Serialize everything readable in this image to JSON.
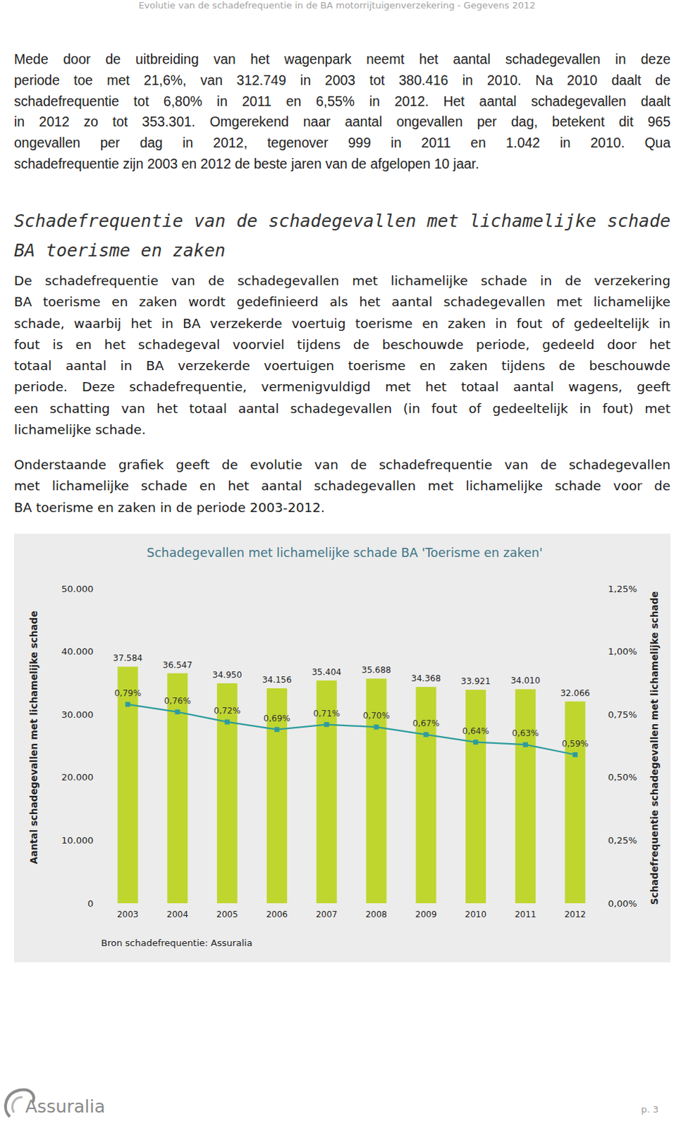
{
  "header": {
    "text": "Evolutie van de schadefrequentie in de BA motorrijtuigenverzekering - Gegevens 2012"
  },
  "paragraph_1": {
    "lines": [
      "Mede door de uitbreiding van het wagenpark neemt het aantal schadegevallen in deze",
      "periode toe met 21,6%, van 312.749 in 2003 tot 380.416 in 2010. Na 2010 daalt de",
      "schadefrequentie tot 6,80% in 2011 en 6,55% in 2012. Het aantal schadegevallen daalt",
      "in 2012 zo tot 353.301. Omgerekend naar aantal ongevallen per dag, betekent dit 965",
      "ongevallen per dag in 2012, tegenover 999 in 2011 en 1.042 in 2010. Qua",
      "schadefrequentie zijn 2003 en 2012 de beste jaren van de afgelopen 10 jaar."
    ]
  },
  "heading": {
    "lines": [
      "Schadefrequentie van de schadegevallen met lichamelijke schade",
      "BA toerisme en zaken"
    ]
  },
  "paragraph_2": {
    "lines": [
      "De schadefrequentie van de schadegevallen met lichamelijke schade in de verzekering",
      "BA toerisme en zaken wordt gedefinieerd als het aantal schadegevallen met lichamelijke",
      "schade, waarbij het in BA verzekerde voertuig toerisme en zaken in fout of gedeeltelijk in",
      "fout is en het schadegeval voorviel tijdens de beschouwde periode, gedeeld door het",
      "totaal aantal in BA verzekerde voertuigen toerisme en zaken tijdens de beschouwde",
      "periode. Deze schadefrequentie, vermenigvuldigd met het totaal aantal wagens, geeft",
      "een schatting van het totaal aantal schadegevallen (in fout of gedeeltelijk in fout) met",
      "lichamelijke schade."
    ]
  },
  "paragraph_3": {
    "lines": [
      "Onderstaande grafiek geeft de evolutie van de schadefrequentie van de schadegevallen",
      "met lichamelijke schade en het aantal schadegevallen met lichamelijke schade voor de",
      "BA toerisme en zaken in de periode 2003-2012."
    ]
  },
  "chart_data": {
    "type": "bar",
    "title": "Schadegevallen met lichamelijke schade BA 'Toerisme en zaken'",
    "ylabel": "Aantal schadegevallen met lichamelijke schade",
    "y2label": "Schadefrequentie schadegevallen met lichamelijke schade",
    "source": "Bron schadefrequentie: Assuralia",
    "categories": [
      "2003",
      "2004",
      "2005",
      "2006",
      "2007",
      "2008",
      "2009",
      "2010",
      "2011",
      "2012"
    ],
    "series": [
      {
        "type": "bar",
        "color": "#bfd62f",
        "values": [
          37584,
          36547,
          34950,
          34156,
          35404,
          35688,
          34368,
          33921,
          34010,
          32066
        ],
        "value_labels": [
          "37.584",
          "36.547",
          "34.950",
          "34.156",
          "35.404",
          "35.688",
          "34.368",
          "33.921",
          "34.010",
          "32.066"
        ]
      },
      {
        "type": "line",
        "axis": "y2",
        "color": "#2e9c9e",
        "marker": "square",
        "values": [
          0.79,
          0.76,
          0.72,
          0.69,
          0.71,
          0.7,
          0.67,
          0.64,
          0.63,
          0.59
        ],
        "value_labels": [
          "0,79%",
          "0,76%",
          "0,72%",
          "0,69%",
          "0,71%",
          "0,70%",
          "0,67%",
          "0,64%",
          "0,63%",
          "0,59%"
        ]
      }
    ],
    "ylim": [
      0,
      50000
    ],
    "yticks": [
      0,
      {
        "value": 10000,
        "label": "10.000"
      },
      {
        "value": 20000,
        "label": "20.000"
      },
      {
        "value": 30000,
        "label": "30.000"
      },
      {
        "value": 40000,
        "label": "40.000"
      },
      {
        "value": 50000,
        "label": "50.000"
      }
    ],
    "y2lim": [
      0,
      1.25
    ],
    "y2ticks": [
      {
        "value": 0,
        "label": "0,00%"
      },
      {
        "value": 0.25,
        "label": "0,25%"
      },
      {
        "value": 0.5,
        "label": "0,50%"
      },
      {
        "value": 0.75,
        "label": "0,75%"
      },
      {
        "value": 1,
        "label": "1,00%"
      },
      {
        "value": 1.25,
        "label": "1,25%"
      }
    ],
    "grid": false,
    "data_labels": true
  },
  "footer": {
    "logo_text": "Assuralia",
    "page": "p. 3"
  }
}
